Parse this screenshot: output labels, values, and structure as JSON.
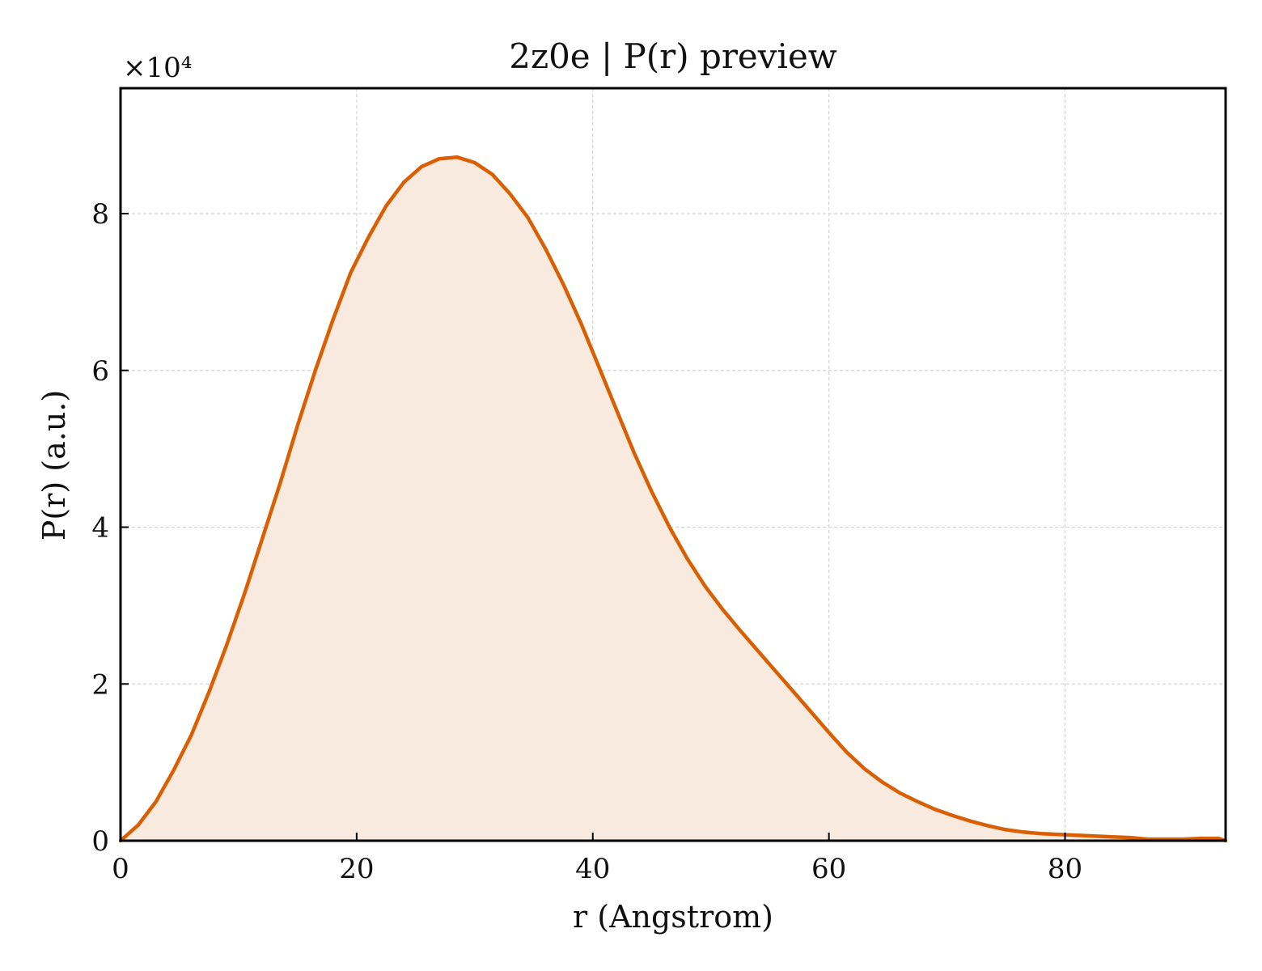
{
  "chart_data": {
    "type": "area",
    "title": "2z0e | P(r) preview",
    "xlabel": "r (Angstrom)",
    "ylabel": "P(r) (a.u.)",
    "y_multiplier_label": "×10⁴",
    "xlim": [
      0,
      93.6
    ],
    "ylim": [
      0,
      9.6
    ],
    "y_scale_note": "values shown in units of 10^4",
    "xticks": [
      0,
      20,
      40,
      60,
      80
    ],
    "yticks": [
      0,
      2,
      4,
      6,
      8
    ],
    "grid": true,
    "legend": "none",
    "colors": {
      "line": "#d95f02",
      "fill": "#f9eadf"
    },
    "series": [
      {
        "x": [
          0,
          1.5,
          3.0,
          4.5,
          6.0,
          7.5,
          9.0,
          10.5,
          12.0,
          13.5,
          15.0,
          16.5,
          18.0,
          19.5,
          21.0,
          22.5,
          24.0,
          25.5,
          27.0,
          28.5,
          30.0,
          31.5,
          33.0,
          34.5,
          36.0,
          37.5,
          39.0,
          40.5,
          42.0,
          43.5,
          45.0,
          46.5,
          48.0,
          49.5,
          51.0,
          52.5,
          54.0,
          55.5,
          57.0,
          58.5,
          60.0,
          61.5,
          63.0,
          64.5,
          66.0,
          67.5,
          69.0,
          70.5,
          72.0,
          73.5,
          75.0,
          76.5,
          78.0,
          79.5,
          81.0,
          82.5,
          84.0,
          85.5,
          87.0,
          88.5,
          90.0,
          91.5,
          93.0,
          93.6
        ],
        "y": [
          0.0,
          0.2,
          0.5,
          0.9,
          1.35,
          1.9,
          2.5,
          3.15,
          3.85,
          4.55,
          5.3,
          6.0,
          6.65,
          7.25,
          7.7,
          8.1,
          8.4,
          8.6,
          8.7,
          8.72,
          8.65,
          8.5,
          8.25,
          7.95,
          7.55,
          7.1,
          6.6,
          6.05,
          5.5,
          4.95,
          4.45,
          4.0,
          3.6,
          3.25,
          2.95,
          2.68,
          2.42,
          2.16,
          1.9,
          1.64,
          1.38,
          1.13,
          0.92,
          0.75,
          0.61,
          0.5,
          0.4,
          0.32,
          0.25,
          0.19,
          0.14,
          0.11,
          0.09,
          0.08,
          0.07,
          0.06,
          0.05,
          0.04,
          0.02,
          0.02,
          0.02,
          0.03,
          0.03,
          0.0
        ]
      }
    ]
  }
}
